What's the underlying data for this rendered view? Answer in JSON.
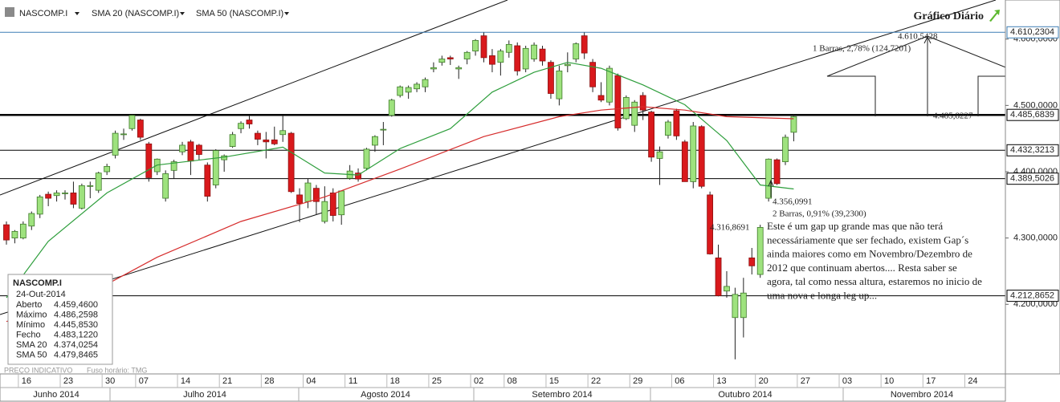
{
  "chart_data": {
    "type": "candlestick",
    "title": "Gráfico Diário",
    "symbol": "NASCOMP.I",
    "up_color": "#9ee27e",
    "down_color": "#d9191c",
    "categories": [
      "2014-06-12",
      "2014-06-13",
      "2014-06-16",
      "2014-06-17",
      "2014-06-18",
      "2014-06-19",
      "2014-06-20",
      "2014-06-23",
      "2014-06-24",
      "2014-06-25",
      "2014-06-26",
      "2014-06-27",
      "2014-06-30",
      "2014-07-01",
      "2014-07-02",
      "2014-07-03",
      "2014-07-07",
      "2014-07-08",
      "2014-07-09",
      "2014-07-10",
      "2014-07-11",
      "2014-07-14",
      "2014-07-15",
      "2014-07-16",
      "2014-07-17",
      "2014-07-18",
      "2014-07-21",
      "2014-07-22",
      "2014-07-23",
      "2014-07-24",
      "2014-07-25",
      "2014-07-28",
      "2014-07-29",
      "2014-07-30",
      "2014-07-31",
      "2014-08-01",
      "2014-08-04",
      "2014-08-05",
      "2014-08-06",
      "2014-08-07",
      "2014-08-08",
      "2014-08-11",
      "2014-08-12",
      "2014-08-13",
      "2014-08-14",
      "2014-08-15",
      "2014-08-18",
      "2014-08-19",
      "2014-08-20",
      "2014-08-21",
      "2014-08-22",
      "2014-08-25",
      "2014-08-26",
      "2014-08-27",
      "2014-08-28",
      "2014-08-29",
      "2014-09-02",
      "2014-09-03",
      "2014-09-04",
      "2014-09-05",
      "2014-09-08",
      "2014-09-09",
      "2014-09-10",
      "2014-09-11",
      "2014-09-12",
      "2014-09-15",
      "2014-09-16",
      "2014-09-17",
      "2014-09-18",
      "2014-09-19",
      "2014-09-22",
      "2014-09-23",
      "2014-09-24",
      "2014-09-25",
      "2014-09-26",
      "2014-09-29",
      "2014-09-30",
      "2014-10-01",
      "2014-10-02",
      "2014-10-03",
      "2014-10-06",
      "2014-10-07",
      "2014-10-08",
      "2014-10-09",
      "2014-10-10",
      "2014-10-13",
      "2014-10-14",
      "2014-10-15",
      "2014-10-16",
      "2014-10-17",
      "2014-10-20",
      "2014-10-21",
      "2014-10-22",
      "2014-10-23",
      "2014-10-24"
    ],
    "ohlc": [
      [
        4320,
        4325,
        4290,
        4297
      ],
      [
        4300,
        4312,
        4292,
        4310
      ],
      [
        4300,
        4325,
        4298,
        4321
      ],
      [
        4318,
        4340,
        4312,
        4337
      ],
      [
        4336,
        4365,
        4330,
        4362
      ],
      [
        4366,
        4370,
        4348,
        4360
      ],
      [
        4364,
        4372,
        4355,
        4368
      ],
      [
        4368,
        4372,
        4358,
        4368
      ],
      [
        4368,
        4385,
        4345,
        4351
      ],
      [
        4345,
        4382,
        4343,
        4379
      ],
      [
        4378,
        4385,
        4360,
        4379
      ],
      [
        4372,
        4400,
        4368,
        4398
      ],
      [
        4400,
        4412,
        4395,
        4408
      ],
      [
        4425,
        4462,
        4420,
        4458
      ],
      [
        4456,
        4465,
        4448,
        4457
      ],
      [
        4465,
        4486,
        4462,
        4485
      ],
      [
        4478,
        4480,
        4448,
        4452
      ],
      [
        4442,
        4445,
        4385,
        4391
      ],
      [
        4400,
        4420,
        4395,
        4419
      ],
      [
        4360,
        4402,
        4355,
        4397
      ],
      [
        4402,
        4418,
        4390,
        4415
      ],
      [
        4430,
        4445,
        4425,
        4440
      ],
      [
        4445,
        4448,
        4395,
        4416
      ],
      [
        4440,
        4442,
        4418,
        4426
      ],
      [
        4410,
        4414,
        4355,
        4363
      ],
      [
        4380,
        4434,
        4375,
        4432
      ],
      [
        4418,
        4426,
        4400,
        4424
      ],
      [
        4438,
        4460,
        4436,
        4456
      ],
      [
        4465,
        4476,
        4458,
        4473
      ],
      [
        4478,
        4485,
        4465,
        4472
      ],
      [
        4458,
        4462,
        4440,
        4449
      ],
      [
        4448,
        4460,
        4420,
        4445
      ],
      [
        4448,
        4468,
        4440,
        4442
      ],
      [
        4456,
        4485,
        4445,
        4462
      ],
      [
        4458,
        4460,
        4368,
        4370
      ],
      [
        4365,
        4375,
        4324,
        4352
      ],
      [
        4355,
        4390,
        4345,
        4383
      ],
      [
        4375,
        4380,
        4335,
        4355
      ],
      [
        4325,
        4378,
        4322,
        4355
      ],
      [
        4368,
        4375,
        4325,
        4334
      ],
      [
        4335,
        4372,
        4320,
        4371
      ],
      [
        4390,
        4410,
        4388,
        4401
      ],
      [
        4398,
        4405,
        4385,
        4389
      ],
      [
        4405,
        4436,
        4402,
        4434
      ],
      [
        4440,
        4455,
        4430,
        4453
      ],
      [
        4463,
        4475,
        4440,
        4464
      ],
      [
        4485,
        4510,
        4483,
        4508
      ],
      [
        4515,
        4530,
        4512,
        4528
      ],
      [
        4520,
        4530,
        4510,
        4527
      ],
      [
        4525,
        4535,
        4520,
        4532
      ],
      [
        4528,
        4542,
        4520,
        4539
      ],
      [
        4555,
        4565,
        4550,
        4557
      ],
      [
        4565,
        4575,
        4560,
        4570
      ],
      [
        4572,
        4575,
        4561,
        4570
      ],
      [
        4555,
        4560,
        4540,
        4557
      ],
      [
        4570,
        4582,
        4562,
        4580
      ],
      [
        4582,
        4600,
        4575,
        4598
      ],
      [
        4605,
        4610,
        4565,
        4572
      ],
      [
        4575,
        4585,
        4550,
        4562
      ],
      [
        4565,
        4585,
        4545,
        4582
      ],
      [
        4580,
        4598,
        4572,
        4592
      ],
      [
        4590,
        4595,
        4545,
        4552
      ],
      [
        4555,
        4590,
        4550,
        4586
      ],
      [
        4570,
        4595,
        4566,
        4591
      ],
      [
        4585,
        4590,
        4560,
        4567
      ],
      [
        4565,
        4568,
        4510,
        4518
      ],
      [
        4510,
        4560,
        4500,
        4552
      ],
      [
        4560,
        4580,
        4550,
        4562
      ],
      [
        4570,
        4595,
        4565,
        4593
      ],
      [
        4605,
        4610,
        4570,
        4579
      ],
      [
        4565,
        4570,
        4520,
        4528
      ],
      [
        4515,
        4535,
        4505,
        4508
      ],
      [
        4505,
        4560,
        4500,
        4556
      ],
      [
        4545,
        4548,
        4462,
        4466
      ],
      [
        4480,
        4515,
        4478,
        4512
      ],
      [
        4470,
        4508,
        4460,
        4505
      ],
      [
        4515,
        4520,
        4478,
        4493
      ],
      [
        4490,
        4492,
        4415,
        4422
      ],
      [
        4420,
        4438,
        4380,
        4430
      ],
      [
        4455,
        4478,
        4450,
        4475
      ],
      [
        4492,
        4495,
        4448,
        4454
      ],
      [
        4445,
        4448,
        4385,
        4385
      ],
      [
        4385,
        4475,
        4375,
        4469
      ],
      [
        4468,
        4470,
        4375,
        4378
      ],
      [
        4365,
        4370,
        4275,
        4276
      ],
      [
        4270,
        4290,
        4212,
        4213
      ],
      [
        4220,
        4250,
        4210,
        4227
      ],
      [
        4180,
        4225,
        4117,
        4215
      ],
      [
        4180,
        4240,
        4150,
        4217
      ],
      [
        4270,
        4285,
        4245,
        4258
      ],
      [
        4245,
        4320,
        4240,
        4316
      ],
      [
        4360,
        4420,
        4355,
        4419
      ],
      [
        4418,
        4420,
        4380,
        4382
      ],
      [
        4415,
        4456,
        4410,
        4452
      ],
      [
        4459.46,
        4486.2598,
        4445.853,
        4483.122
      ]
    ],
    "series": [
      {
        "name": "SMA 20 (NASCOMP.I)",
        "color": "#2e9e3c",
        "x": [
          "2014-06-12",
          "2014-06-19",
          "2014-06-30",
          "2014-07-09",
          "2014-07-21",
          "2014-07-30",
          "2014-08-06",
          "2014-08-12",
          "2014-08-19",
          "2014-08-27",
          "2014-09-04",
          "2014-09-11",
          "2014-09-17",
          "2014-09-23",
          "2014-09-30",
          "2014-10-07",
          "2014-10-14",
          "2014-10-20",
          "2014-10-24"
        ],
        "values": [
          4210,
          4295,
          4368,
          4410,
          4422,
          4437,
          4398,
          4395,
          4435,
          4465,
          4520,
          4550,
          4565,
          4556,
          4531,
          4501,
          4447,
          4380,
          4374.0254
        ]
      },
      {
        "name": "SMA 50 (NASCOMP.I)",
        "color": "#d62c2c",
        "x": [
          "2014-06-12",
          "2014-06-25",
          "2014-07-09",
          "2014-07-23",
          "2014-08-06",
          "2014-08-19",
          "2014-09-03",
          "2014-09-16",
          "2014-09-23",
          "2014-09-30",
          "2014-10-07",
          "2014-10-14",
          "2014-10-24"
        ],
        "values": [
          4174,
          4210,
          4271,
          4325,
          4362,
          4404,
          4453,
          4483,
          4493,
          4498,
          4493,
          4483,
          4479.8465
        ]
      }
    ],
    "ylim": [
      4095,
      4659
    ],
    "yticks": [
      {
        "value": 4200,
        "label": "4.200,0000"
      },
      {
        "value": 4300,
        "label": "4.300,0000"
      },
      {
        "value": 4400,
        "label": "4.400,0000"
      },
      {
        "value": 4500,
        "label": "4.500,0000"
      },
      {
        "value": 4600,
        "label": "4.600,0000"
      }
    ],
    "xticks": [
      {
        "value": "2014-06-16",
        "label": "16"
      },
      {
        "value": "2014-06-23",
        "label": "23"
      },
      {
        "value": "2014-06-30",
        "label": "30"
      },
      {
        "value": "2014-07-07",
        "label": "07"
      },
      {
        "value": "2014-07-14",
        "label": "14"
      },
      {
        "value": "2014-07-21",
        "label": "21"
      },
      {
        "value": "2014-07-28",
        "label": "28"
      },
      {
        "value": "2014-08-04",
        "label": "04"
      },
      {
        "value": "2014-08-11",
        "label": "11"
      },
      {
        "value": "2014-08-18",
        "label": "18"
      },
      {
        "value": "2014-08-25",
        "label": "25"
      },
      {
        "value": "2014-09-02",
        "label": "02"
      },
      {
        "value": "2014-09-08",
        "label": "08"
      },
      {
        "value": "2014-09-15",
        "label": "15"
      },
      {
        "value": "2014-09-22",
        "label": "22"
      },
      {
        "value": "2014-09-29",
        "label": "29"
      },
      {
        "value": "2014-10-06",
        "label": "06"
      },
      {
        "value": "2014-10-13",
        "label": "13"
      },
      {
        "value": "2014-10-20",
        "label": "20"
      },
      {
        "value": "2014-10-27",
        "label": "27"
      },
      {
        "value": "2014-11-03",
        "label": "03"
      },
      {
        "value": "2014-11-10",
        "label": "10"
      },
      {
        "value": "2014-11-17",
        "label": "17"
      },
      {
        "value": "2014-11-24",
        "label": "24"
      }
    ],
    "months": [
      "Junho 2014",
      "Julho 2014",
      "Agosto 2014",
      "Setembro 2014",
      "Outubro 2014",
      "Novembro 2014"
    ],
    "price_lines": [
      {
        "value": 4610.2304,
        "label": "4.610,2304",
        "color": "#3f7fb5"
      },
      {
        "value": 4485.6839,
        "label": "4.485,6839",
        "color": "#000000"
      },
      {
        "value": 4432.3213,
        "label": "4.432,3213",
        "color": "#000000"
      },
      {
        "value": 4389.5026,
        "label": "4.389,5026",
        "color": "#000000"
      },
      {
        "value": 4212.8652,
        "label": "4.212,8652",
        "color": "#000000"
      }
    ],
    "annotations": [
      "4.610,5428",
      "1 Barras, 2,78% (124,7201)",
      "4.485,8227",
      "4.356,0991",
      "2 Barras, 0,91% (39,2300)",
      "4.316,8691"
    ],
    "comment": [
      "Este é um gap up grande mas que não terá",
      "necessáriamente que ser fechado, existem Gap´s",
      "ainda maiores como em Novembro/Dezembro de",
      "2012 que continuam abertos.... Resta saber se",
      "agora, tal como nessa altura, estaremos no inicio de",
      "uma nova e longa leg up..."
    ],
    "info_box": {
      "symbol": "NASCOMP.I",
      "date": "24-Out-2014",
      "rows": [
        [
          "Aberto",
          "4.459,4600"
        ],
        [
          "Máximo",
          "4.486,2598"
        ],
        [
          "Mínimo",
          "4.445,8530"
        ],
        [
          "Fecho",
          "4.483,1220"
        ],
        [
          "SMA 20",
          "4.374,0254"
        ],
        [
          "SMA 50",
          "4.479,8465"
        ]
      ]
    },
    "footer": [
      "PREÇO INDICATIVO",
      "Fuso horário: TMG"
    ]
  }
}
